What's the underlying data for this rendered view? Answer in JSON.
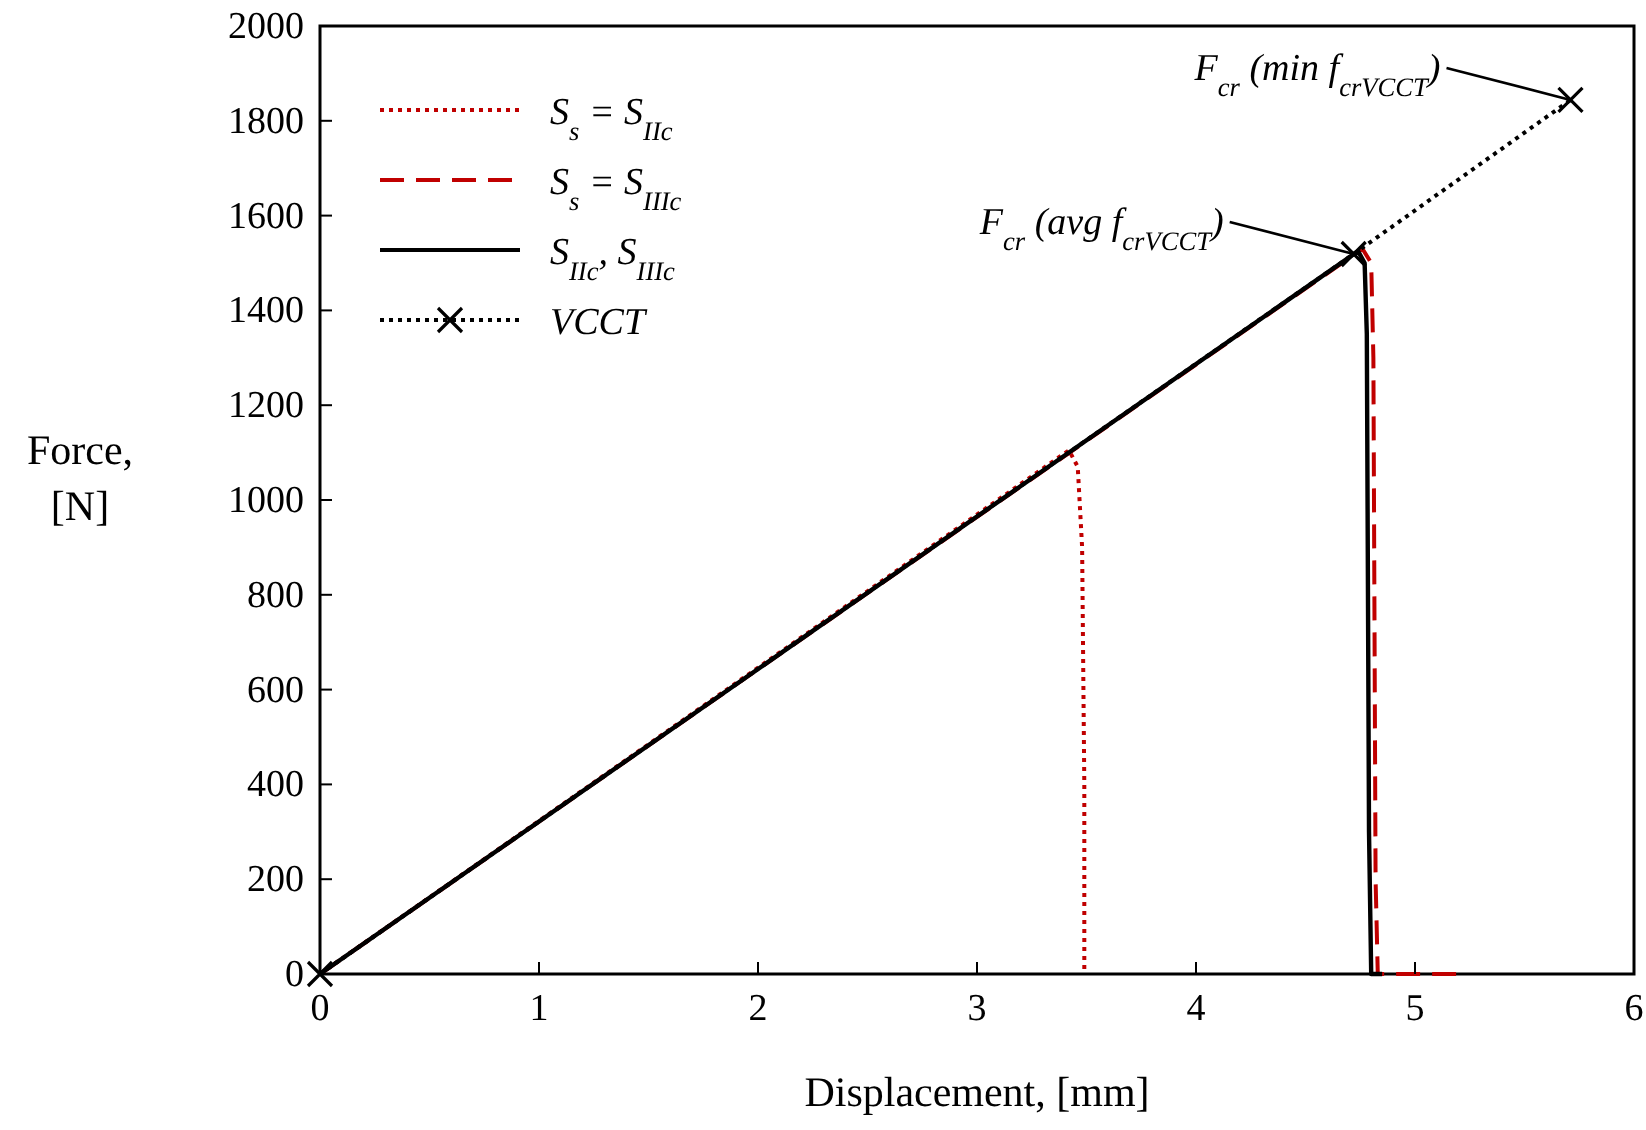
{
  "chart_data": {
    "type": "line",
    "xlabel": "Displacement, [mm]",
    "ylabel": "Force,\n[N]",
    "xlim": [
      0,
      6
    ],
    "xticks": [
      0,
      1,
      2,
      3,
      4,
      5,
      6
    ],
    "ylim": [
      0,
      2000
    ],
    "yticks": [
      0,
      200,
      400,
      600,
      800,
      1000,
      1200,
      1400,
      1600,
      1800,
      2000
    ],
    "grid": false,
    "legend": "top left",
    "marker": "none",
    "series": [
      {
        "name": "S$_{s}$ = S$_{IIc}$",
        "color": "#c00000",
        "line_style": "dotted",
        "x": [
          0,
          3.42,
          3.46,
          3.48,
          3.49,
          3.49
        ],
        "values": [
          0,
          1105,
          1070,
          900,
          400,
          0
        ]
      },
      {
        "name": "S$_{s}$ = S$_{IIIc}$",
        "color": "#c00000",
        "line_style": "dashed",
        "x": [
          0,
          4.76,
          4.8,
          4.81,
          4.82,
          4.83,
          5.19
        ],
        "values": [
          0,
          1530,
          1500,
          1300,
          200,
          0,
          0
        ]
      },
      {
        "name": "S$_{IIc}$, S$_{IIIc}$",
        "color": "#000000",
        "line_style": "solid",
        "x": [
          0,
          4.74,
          4.77,
          4.78,
          4.79,
          4.8,
          4.85
        ],
        "values": [
          0,
          1525,
          1500,
          1350,
          300,
          0,
          0
        ]
      },
      {
        "name": "VCCT",
        "color": "#000000",
        "line_style": "dotted",
        "marker": "cross",
        "x": [
          0,
          4.72,
          5.71
        ],
        "values": [
          0,
          1519,
          1844
        ]
      }
    ],
    "annotations": [
      {
        "text": "F$_{cr}$ (avg f$_{cr}$$_{VCCT}$)",
        "x": 4.72,
        "y": 1519
      },
      {
        "text": "F$_{cr}$ (min f$_{cr}$$_{VCCT}$)",
        "x": 5.71,
        "y": 1844
      }
    ]
  }
}
